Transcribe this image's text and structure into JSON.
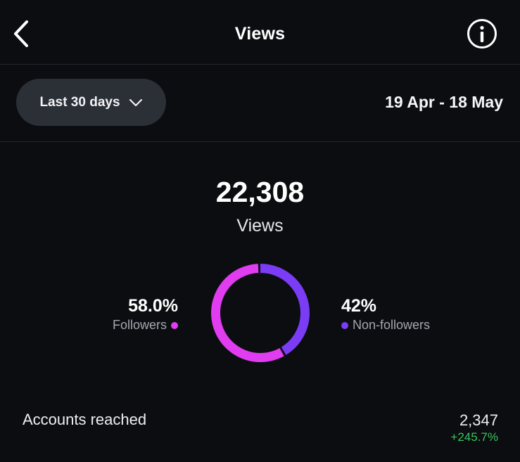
{
  "header": {
    "title": "Views",
    "back_icon": "chevron-left-icon",
    "info_icon": "info-icon"
  },
  "filter": {
    "range_label": "Last 30 days",
    "range_icon": "chevron-down-icon",
    "date_range": "19 Apr - 18 May"
  },
  "summary": {
    "total": "22,308",
    "total_label": "Views"
  },
  "breakdown": {
    "followers": {
      "percent": "58.0%",
      "label": "Followers",
      "fraction": 0.58,
      "color": "#e03cf0"
    },
    "non_followers": {
      "percent": "42%",
      "label": "Non-followers",
      "fraction": 0.42,
      "color": "#7a3cf5"
    }
  },
  "accounts_reached": {
    "label": "Accounts reached",
    "value": "2,347",
    "change": "+245.7%",
    "change_color": "#3bc55d"
  }
}
